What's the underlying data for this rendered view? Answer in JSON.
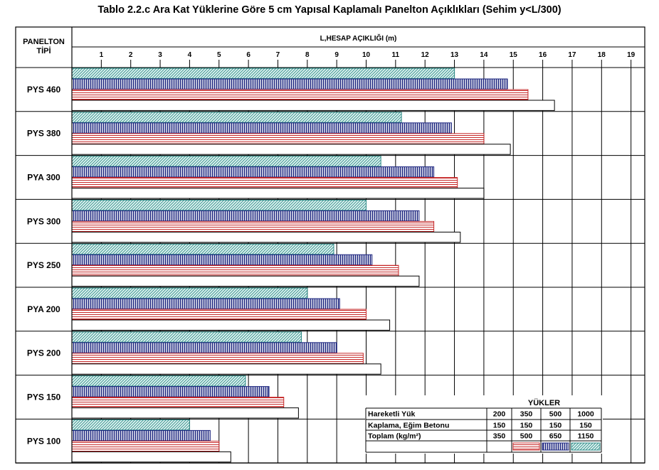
{
  "title": "Tablo 2.2.c Ara Kat Yüklerine Göre 5 cm Yapısal Kaplamalı Panelton Açıklıkları (Sehim y<L/300)",
  "row_header": [
    "PANELTON",
    "TİPİ"
  ],
  "chart_data": {
    "type": "bar",
    "orientation": "horizontal",
    "title": "Tablo 2.2.c Ara Kat Yüklerine Göre 5 cm Yapısal Kaplamalı Panelton Açıklıkları (Sehim y<L/300)",
    "xlabel": "L,HESAP AÇIKLIĞI (m)",
    "ylabel": "PANELTON TİPİ",
    "xlim": [
      0,
      19
    ],
    "xticks": [
      1,
      2,
      3,
      4,
      5,
      6,
      7,
      8,
      9,
      10,
      11,
      12,
      13,
      14,
      15,
      16,
      17,
      18,
      19
    ],
    "grid": true,
    "categories": [
      "PYS 460",
      "PYS 380",
      "PYA 300",
      "PYS 300",
      "PYS 250",
      "PYA 200",
      "PYS 200",
      "PYS 150",
      "PYS 100"
    ],
    "series": [
      {
        "name": "1150",
        "pattern": "diagonal",
        "color": "#2e8b87",
        "values": [
          13.0,
          11.2,
          10.5,
          10.0,
          8.9,
          8.0,
          7.8,
          5.9,
          4.0
        ]
      },
      {
        "name": "650",
        "pattern": "vertical",
        "color": "#1a237e",
        "values": [
          14.8,
          12.9,
          12.3,
          11.8,
          10.2,
          9.1,
          9.0,
          6.7,
          4.7
        ]
      },
      {
        "name": "500",
        "pattern": "horizontal",
        "color": "#c62828",
        "values": [
          15.5,
          14.0,
          13.1,
          12.3,
          11.1,
          10.0,
          9.9,
          7.2,
          5.0
        ]
      },
      {
        "name": "350",
        "pattern": "none",
        "color": "#000000",
        "values": [
          16.4,
          14.9,
          14.0,
          13.2,
          11.8,
          10.8,
          10.5,
          7.7,
          5.4
        ]
      }
    ]
  },
  "loads_table": {
    "title": "YÜKLER",
    "rows": [
      {
        "label": "Hareketli Yük",
        "values": [
          "200",
          "350",
          "500",
          "1000"
        ]
      },
      {
        "label": "Kaplama, Eğim Betonu",
        "values": [
          "150",
          "150",
          "150",
          "150"
        ]
      },
      {
        "label": "Toplam (kg/m²)",
        "values": [
          "350",
          "500",
          "650",
          "1150"
        ]
      }
    ],
    "legend_patterns": [
      "none",
      "horizontal",
      "vertical",
      "diagonal"
    ]
  }
}
